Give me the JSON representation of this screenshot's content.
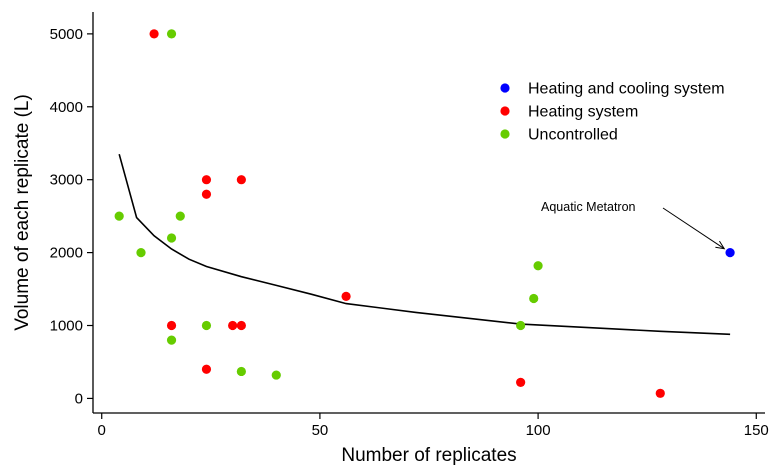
{
  "chart_data": {
    "type": "scatter",
    "xlabel": "Number of replicates",
    "ylabel": "Volume of each replicate (L)",
    "xlim": [
      -2,
      152
    ],
    "ylim": [
      -200,
      5300
    ],
    "x_ticks": [
      0,
      50,
      100,
      150
    ],
    "y_ticks": [
      0,
      1000,
      2000,
      3000,
      4000,
      5000
    ],
    "grid": false,
    "legend_position": "top-right",
    "series": [
      {
        "name": "Heating and cooling system",
        "color": "#0000ff",
        "points": [
          [
            144,
            2000
          ]
        ]
      },
      {
        "name": "Heating system",
        "color": "#ff0000",
        "points": [
          [
            12,
            5000
          ],
          [
            24,
            3000
          ],
          [
            24,
            2800
          ],
          [
            32,
            3000
          ],
          [
            16,
            1000
          ],
          [
            30,
            1000
          ],
          [
            32,
            1000
          ],
          [
            24,
            400
          ],
          [
            56,
            1400
          ],
          [
            96,
            220
          ],
          [
            128,
            70
          ]
        ]
      },
      {
        "name": "Uncontrolled",
        "color": "#66cc00",
        "points": [
          [
            16,
            5000
          ],
          [
            4,
            2500
          ],
          [
            18,
            2500
          ],
          [
            16,
            2200
          ],
          [
            9,
            2000
          ],
          [
            16,
            800
          ],
          [
            24,
            1000
          ],
          [
            32,
            370
          ],
          [
            40,
            320
          ],
          [
            96,
            1000
          ],
          [
            99,
            1370
          ],
          [
            100,
            1820
          ]
        ]
      }
    ],
    "curve": {
      "color": "#000000",
      "points": [
        [
          4,
          3350
        ],
        [
          8,
          2480
        ],
        [
          12,
          2230
        ],
        [
          16,
          2050
        ],
        [
          20,
          1910
        ],
        [
          24,
          1810
        ],
        [
          32,
          1670
        ],
        [
          40,
          1550
        ],
        [
          48,
          1430
        ],
        [
          56,
          1300
        ],
        [
          72,
          1180
        ],
        [
          96,
          1020
        ],
        [
          112,
          970
        ],
        [
          128,
          920
        ],
        [
          144,
          880
        ]
      ]
    },
    "annotation": {
      "text": "Aquatic Metatron",
      "target": [
        144,
        2000
      ]
    }
  }
}
